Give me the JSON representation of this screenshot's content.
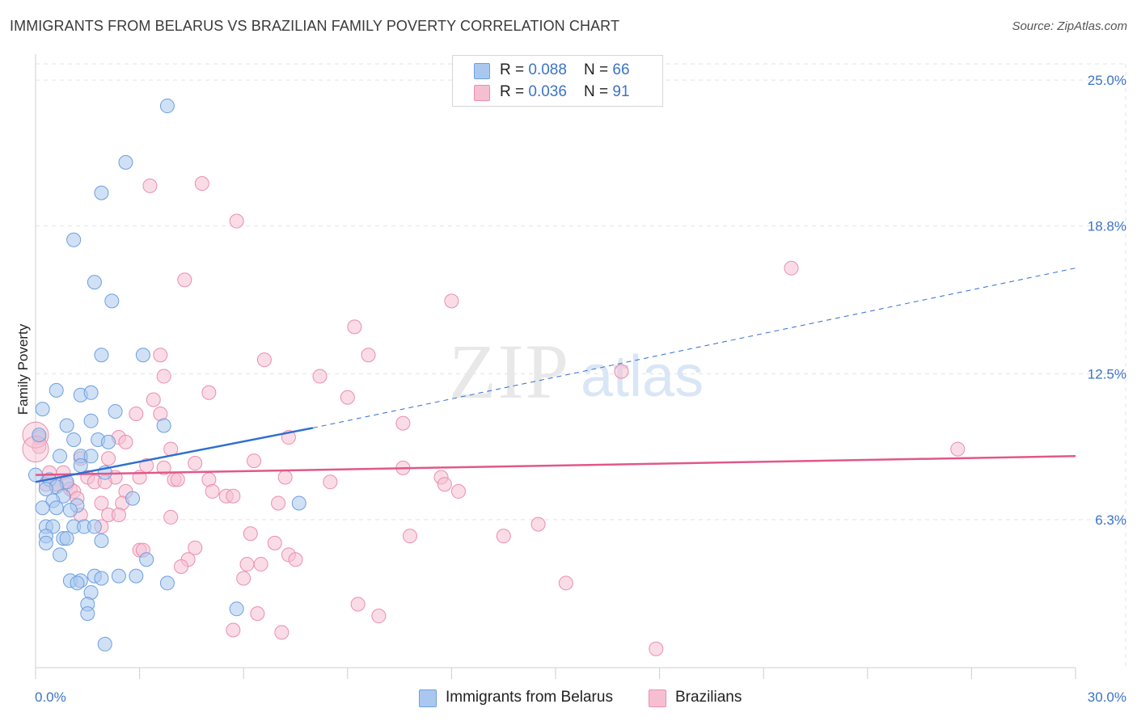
{
  "title": "IMMIGRANTS FROM BELARUS VS BRAZILIAN FAMILY POVERTY CORRELATION CHART",
  "source": "Source: ZipAtlas.com",
  "watermark": {
    "zip": "ZIP",
    "atlas": "atlas"
  },
  "legend": {
    "r_label": "R = ",
    "n_label": "N = ",
    "series": [
      {
        "r": "0.088",
        "n": "66"
      },
      {
        "r": "0.036",
        "n": "91"
      }
    ]
  },
  "colors": {
    "blue_fill": "#aac8ef",
    "blue_stroke": "#6d9fe0",
    "blue_line": "#2f6fd0",
    "pink_fill": "#f6bfd1",
    "pink_stroke": "#ea8eae",
    "pink_line": "#e0588a",
    "tick_text": "#3b73c6",
    "grid": "#e3e3e3"
  },
  "chart_data": {
    "type": "scatter",
    "title": "IMMIGRANTS FROM BELARUS VS BRAZILIAN FAMILY POVERTY CORRELATION CHART",
    "xlabel": "",
    "ylabel": "Family Poverty",
    "xlim": [
      0,
      30
    ],
    "ylim": [
      0,
      26
    ],
    "x_tick_labels": [
      "0.0%",
      "30.0%"
    ],
    "y_ticks": [
      6.3,
      12.5,
      18.8,
      25.0
    ],
    "y_tick_labels": [
      "6.3%",
      "12.5%",
      "18.8%",
      "25.0%"
    ],
    "grid": true,
    "legend_position": "top-center",
    "series": [
      {
        "name": "Immigrants from Belarus",
        "r": 0.088,
        "n": 66,
        "trend": {
          "x": [
            0,
            8
          ],
          "y": [
            7.9,
            10.2
          ],
          "dashed_to": [
            30,
            17.0
          ]
        },
        "points": [
          [
            3.8,
            23.9
          ],
          [
            2.6,
            21.5
          ],
          [
            1.9,
            20.2
          ],
          [
            1.1,
            18.2
          ],
          [
            1.7,
            16.4
          ],
          [
            2.2,
            15.6
          ],
          [
            1.9,
            13.3
          ],
          [
            3.1,
            13.3
          ],
          [
            0.6,
            11.8
          ],
          [
            1.3,
            11.6
          ],
          [
            1.6,
            11.7
          ],
          [
            0.2,
            11.0
          ],
          [
            2.3,
            10.9
          ],
          [
            1.6,
            10.5
          ],
          [
            0.9,
            10.3
          ],
          [
            3.7,
            10.3
          ],
          [
            0.1,
            9.9
          ],
          [
            1.1,
            9.7
          ],
          [
            1.8,
            9.7
          ],
          [
            2.1,
            9.6
          ],
          [
            0.7,
            9.0
          ],
          [
            1.3,
            9.0
          ],
          [
            1.6,
            9.0
          ],
          [
            0.0,
            8.2
          ],
          [
            1.3,
            8.6
          ],
          [
            2.0,
            8.3
          ],
          [
            0.4,
            8.0
          ],
          [
            0.9,
            7.9
          ],
          [
            0.6,
            7.7
          ],
          [
            0.3,
            7.6
          ],
          [
            0.8,
            7.3
          ],
          [
            2.8,
            7.2
          ],
          [
            0.5,
            7.1
          ],
          [
            1.2,
            6.9
          ],
          [
            0.2,
            6.8
          ],
          [
            0.6,
            6.8
          ],
          [
            1.0,
            6.7
          ],
          [
            7.6,
            7.0
          ],
          [
            0.3,
            6.0
          ],
          [
            0.5,
            6.0
          ],
          [
            1.1,
            6.0
          ],
          [
            1.4,
            6.0
          ],
          [
            1.7,
            6.0
          ],
          [
            0.3,
            5.6
          ],
          [
            0.8,
            5.5
          ],
          [
            0.9,
            5.5
          ],
          [
            1.9,
            5.4
          ],
          [
            0.3,
            5.3
          ],
          [
            0.7,
            4.8
          ],
          [
            3.2,
            4.6
          ],
          [
            1.7,
            3.9
          ],
          [
            1.0,
            3.7
          ],
          [
            1.3,
            3.7
          ],
          [
            1.9,
            3.8
          ],
          [
            2.4,
            3.9
          ],
          [
            2.9,
            3.9
          ],
          [
            3.8,
            3.6
          ],
          [
            1.2,
            3.6
          ],
          [
            1.6,
            3.2
          ],
          [
            1.5,
            2.7
          ],
          [
            1.5,
            2.3
          ],
          [
            5.8,
            2.5
          ],
          [
            2.0,
            1.0
          ]
        ]
      },
      {
        "name": "Brazilians",
        "r": 0.036,
        "n": 91,
        "trend": {
          "x": [
            0,
            30
          ],
          "y": [
            8.2,
            9.0
          ]
        },
        "points": [
          [
            4.8,
            20.6
          ],
          [
            3.3,
            20.5
          ],
          [
            5.8,
            19.0
          ],
          [
            21.8,
            17.0
          ],
          [
            4.3,
            16.5
          ],
          [
            12.0,
            15.6
          ],
          [
            9.2,
            14.5
          ],
          [
            3.6,
            13.3
          ],
          [
            9.6,
            13.3
          ],
          [
            6.6,
            13.1
          ],
          [
            3.7,
            12.4
          ],
          [
            8.2,
            12.4
          ],
          [
            16.9,
            12.6
          ],
          [
            5.0,
            11.7
          ],
          [
            9.0,
            11.5
          ],
          [
            3.4,
            11.4
          ],
          [
            2.9,
            10.8
          ],
          [
            3.6,
            10.8
          ],
          [
            10.6,
            10.4
          ],
          [
            0.1,
            9.8
          ],
          [
            2.4,
            9.8
          ],
          [
            2.6,
            9.6
          ],
          [
            7.3,
            9.8
          ],
          [
            0.1,
            9.4
          ],
          [
            3.9,
            9.3
          ],
          [
            26.6,
            9.3
          ],
          [
            4.6,
            8.7
          ],
          [
            6.3,
            8.8
          ],
          [
            1.3,
            8.9
          ],
          [
            2.1,
            8.9
          ],
          [
            3.2,
            8.6
          ],
          [
            3.7,
            8.5
          ],
          [
            10.6,
            8.5
          ],
          [
            0.4,
            8.3
          ],
          [
            0.8,
            8.3
          ],
          [
            1.5,
            8.1
          ],
          [
            2.3,
            8.1
          ],
          [
            3.0,
            8.1
          ],
          [
            4.0,
            8.0
          ],
          [
            4.1,
            8.0
          ],
          [
            5.0,
            8.0
          ],
          [
            7.2,
            8.1
          ],
          [
            8.5,
            7.9
          ],
          [
            11.7,
            8.1
          ],
          [
            11.8,
            7.8
          ],
          [
            0.6,
            7.8
          ],
          [
            0.9,
            7.8
          ],
          [
            1.7,
            7.9
          ],
          [
            2.0,
            7.9
          ],
          [
            1.0,
            7.6
          ],
          [
            1.1,
            7.5
          ],
          [
            2.6,
            7.5
          ],
          [
            5.1,
            7.5
          ],
          [
            5.5,
            7.3
          ],
          [
            5.7,
            7.3
          ],
          [
            12.2,
            7.5
          ],
          [
            1.2,
            7.2
          ],
          [
            1.9,
            7.0
          ],
          [
            2.5,
            7.0
          ],
          [
            7.0,
            7.0
          ],
          [
            1.3,
            6.5
          ],
          [
            2.1,
            6.5
          ],
          [
            2.4,
            6.5
          ],
          [
            3.9,
            6.4
          ],
          [
            14.5,
            6.1
          ],
          [
            1.9,
            6.0
          ],
          [
            6.2,
            5.7
          ],
          [
            10.8,
            5.6
          ],
          [
            13.5,
            5.6
          ],
          [
            0.3,
            7.8
          ],
          [
            3.0,
            5.0
          ],
          [
            3.1,
            5.0
          ],
          [
            4.6,
            5.1
          ],
          [
            6.9,
            5.3
          ],
          [
            7.3,
            4.8
          ],
          [
            7.5,
            4.6
          ],
          [
            4.4,
            4.6
          ],
          [
            4.2,
            4.3
          ],
          [
            6.1,
            4.4
          ],
          [
            6.5,
            4.4
          ],
          [
            6.0,
            3.8
          ],
          [
            15.3,
            3.6
          ],
          [
            9.3,
            2.7
          ],
          [
            6.4,
            2.3
          ],
          [
            9.9,
            2.2
          ],
          [
            5.7,
            1.6
          ],
          [
            7.1,
            1.5
          ],
          [
            17.9,
            0.8
          ],
          [
            0.6,
            7.8
          ]
        ],
        "large_points": [
          [
            0.0,
            9.9
          ],
          [
            0.0,
            9.3
          ]
        ]
      }
    ]
  },
  "bottom_legend": [
    {
      "label": "Immigrants from Belarus"
    },
    {
      "label": "Brazilians"
    }
  ]
}
